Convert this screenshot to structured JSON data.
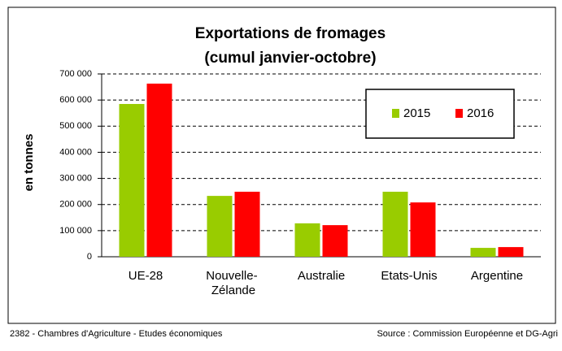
{
  "chart_data": {
    "type": "bar",
    "title": "Exportations de fromages",
    "subtitle": "(cumul janvier-octobre)",
    "ylabel": "en tonnes",
    "categories": [
      "UE-28",
      "Nouvelle-\nZélande",
      "Australie",
      "Etats-Unis",
      "Argentine"
    ],
    "series": [
      {
        "name": "2015",
        "color": "#99cc00",
        "values": [
          585000,
          233000,
          128000,
          249000,
          34000
        ]
      },
      {
        "name": "2016",
        "color": "#ff0000",
        "values": [
          663000,
          249000,
          121000,
          208000,
          37000
        ]
      }
    ],
    "ylim": [
      0,
      700000
    ],
    "yticks": [
      0,
      {
        "value": 100000,
        "label": "100 000"
      },
      {
        "value": 200000,
        "label": "200 000"
      },
      {
        "value": 300000,
        "label": "300 000"
      },
      {
        "value": 400000,
        "label": "400 000"
      },
      {
        "value": 500000,
        "label": "500 000"
      },
      {
        "value": 600000,
        "label": "600 000"
      },
      {
        "value": 700000,
        "label": "700 000"
      }
    ],
    "grid": true,
    "legend": "upper right",
    "footer_left": "2382 - Chambres d'Agriculture - Etudes économiques",
    "footer_right": "Source : Commission Européenne et DG-Agri"
  }
}
